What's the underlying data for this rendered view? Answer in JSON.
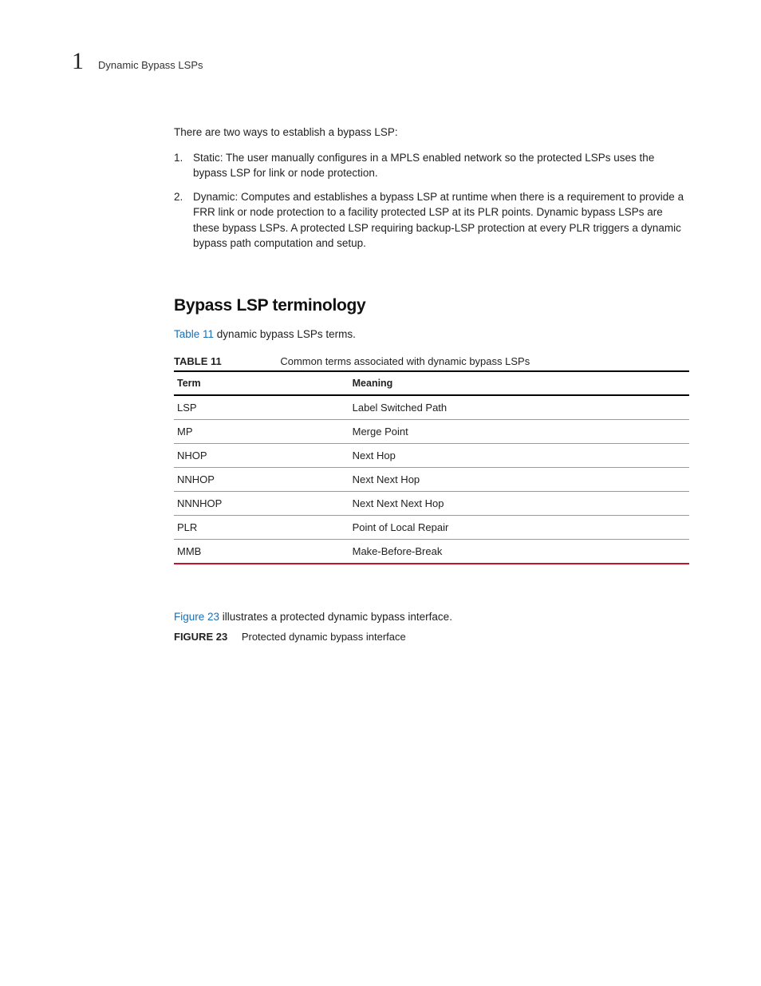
{
  "header": {
    "chapter_number": "1",
    "title": "Dynamic Bypass LSPs"
  },
  "intro": {
    "lead": "There are two ways to establish a bypass LSP:",
    "items": [
      {
        "num": "1.",
        "text": "Static: The user manually configures in a MPLS enabled network so the protected LSPs uses the bypass LSP for link or node protection."
      },
      {
        "num": "2.",
        "text": "Dynamic: Computes and establishes a bypass LSP at runtime when there is a requirement to provide a FRR link or node protection to a facility protected LSP at its PLR points. Dynamic bypass LSPs are these bypass LSPs. A protected LSP requiring backup-LSP protection at every PLR triggers a dynamic bypass path computation and setup."
      }
    ]
  },
  "section": {
    "heading": "Bypass LSP terminology",
    "ref_link": "Table 11",
    "ref_tail": " dynamic bypass LSPs terms."
  },
  "table": {
    "label": "TABLE 11",
    "caption": "Common terms associated with dynamic bypass LSPs",
    "columns": [
      "Term",
      "Meaning"
    ],
    "rows": [
      [
        "LSP",
        "Label Switched Path"
      ],
      [
        "MP",
        "Merge Point"
      ],
      [
        "NHOP",
        "Next Hop"
      ],
      [
        "NNHOP",
        "Next Next Hop"
      ],
      [
        "NNNHOP",
        "Next Next Next Hop"
      ],
      [
        "PLR",
        "Point of Local Repair"
      ],
      [
        "MMB",
        "Make-Before-Break"
      ]
    ]
  },
  "figure": {
    "ref_link": "Figure 23",
    "ref_tail": " illustrates a protected dynamic bypass interface.",
    "label": "FIGURE 23",
    "caption": "Protected dynamic bypass interface"
  }
}
